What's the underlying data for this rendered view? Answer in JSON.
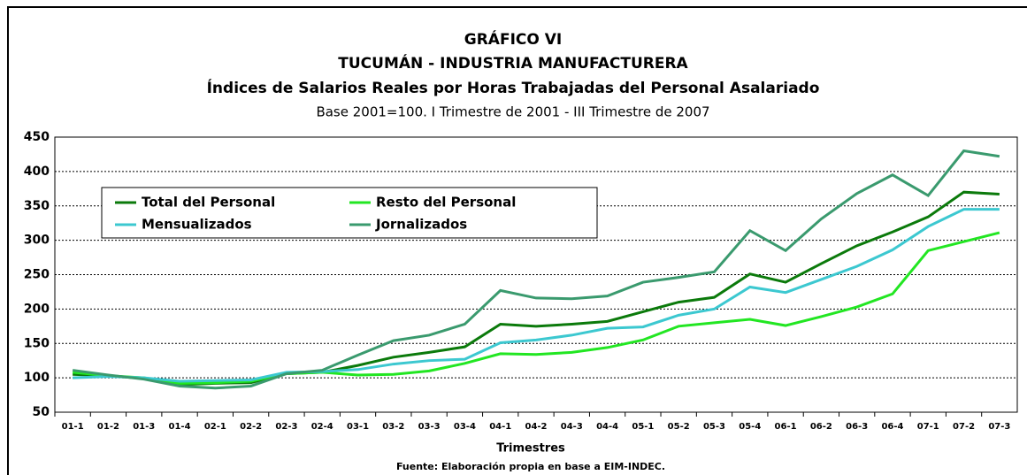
{
  "chart_data": {
    "type": "line",
    "title": "GRÁFICO VI",
    "subtitle": "TUCUMÁN - INDUSTRIA MANUFACTURERA",
    "subtitle2": "Índices de Salarios Reales por Horas Trabajadas del Personal Asalariado",
    "subtitle3": "Base 2001=100. I Trimestre de 2001 - III Trimestre de 2007",
    "xlabel": "Trimestres",
    "source": "Fuente: Elaboración propia en base a EIM-INDEC.",
    "categories": [
      "01-1",
      "01-2",
      "01-3",
      "01-4",
      "02-1",
      "02-2",
      "02-3",
      "02-4",
      "03-1",
      "03-2",
      "03-3",
      "03-4",
      "04-1",
      "04-2",
      "04-3",
      "04-4",
      "05-1",
      "05-2",
      "05-3",
      "05-4",
      "06-1",
      "06-2",
      "06-3",
      "06-4",
      "07-1",
      "07-2",
      "07-3"
    ],
    "series": [
      {
        "name": "Total del Personal",
        "color": "#0b7a0b",
        "values": [
          105,
          103,
          99,
          90,
          92,
          93,
          106,
          108,
          118,
          130,
          137,
          145,
          178,
          175,
          178,
          182,
          196,
          210,
          217,
          251,
          239,
          266,
          292,
          312,
          334,
          370,
          367
        ]
      },
      {
        "name": "Resto del Personal",
        "color": "#22e622",
        "values": [
          108,
          103,
          100,
          92,
          93,
          95,
          106,
          108,
          104,
          105,
          110,
          121,
          135,
          134,
          137,
          144,
          155,
          175,
          180,
          185,
          176,
          189,
          203,
          222,
          285,
          298,
          311
        ]
      },
      {
        "name": "Mensualizados",
        "color": "#3cc8d0",
        "values": [
          100,
          102,
          100,
          95,
          96,
          97,
          108,
          109,
          112,
          120,
          125,
          127,
          151,
          155,
          162,
          172,
          174,
          191,
          200,
          232,
          224,
          243,
          262,
          286,
          320,
          345,
          345
        ]
      },
      {
        "name": "Jornalizados",
        "color": "#3a9a6e",
        "values": [
          111,
          104,
          98,
          88,
          85,
          88,
          106,
          111,
          133,
          154,
          162,
          178,
          227,
          216,
          215,
          219,
          239,
          246,
          254,
          314,
          285,
          331,
          368,
          395,
          365,
          430,
          422
        ]
      }
    ],
    "ylim": [
      50,
      450
    ],
    "yticks": [
      50,
      100,
      150,
      200,
      250,
      300,
      350,
      400,
      450
    ],
    "grid": true,
    "legend": "upper left"
  }
}
